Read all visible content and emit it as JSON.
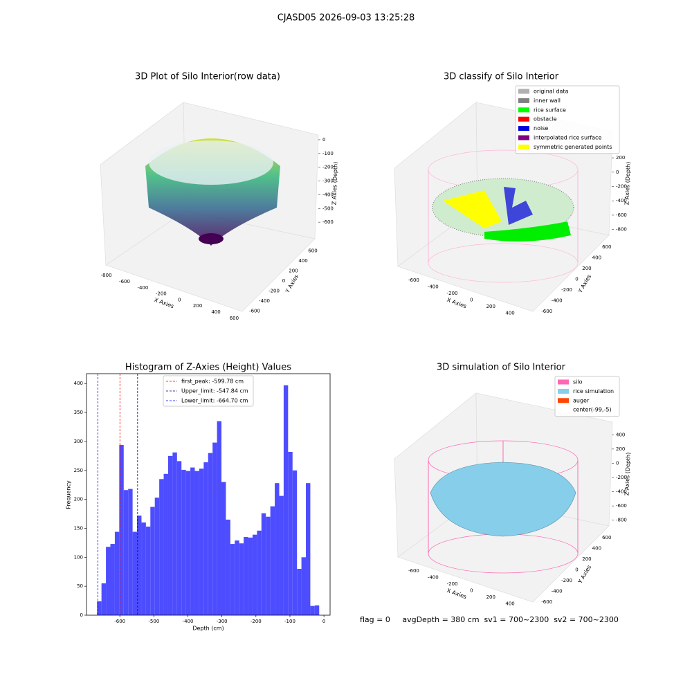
{
  "title": "CJASD05 2026-09-03 13:25:28",
  "footer": "flag = 0     avgDepth = 380 cm  sv1 = 700~2300  sv2 = 700~2300",
  "chart_data": [
    {
      "type": "scatter3d",
      "title": "3D Plot of Silo Interior(row data)",
      "xlabel": "X Axies",
      "ylabel": "Y Axies",
      "zlabel": "Z Axies (Depth)",
      "xlim": [
        -850,
        650
      ],
      "ylim": [
        -700,
        700
      ],
      "zlim": [
        -700,
        50
      ],
      "xticks": [
        -800,
        -600,
        -400,
        -200,
        0,
        200,
        400,
        600
      ],
      "yticks": [
        -600,
        -400,
        -200,
        0,
        200,
        400,
        600
      ],
      "zticks": [
        0,
        -100,
        -200,
        -300,
        -400,
        -500,
        -600
      ]
    },
    {
      "type": "scatter3d",
      "title": "3D classify of Silo Interior",
      "xlabel": "X Axies",
      "ylabel": "Y Axies",
      "zlabel": "Z Axies (Depth)",
      "xlim": [
        -700,
        500
      ],
      "ylim": [
        -700,
        700
      ],
      "zlim": [
        -900,
        500
      ],
      "xticks": [
        -600,
        -400,
        -200,
        0,
        200,
        400
      ],
      "yticks": [
        -600,
        -400,
        -200,
        0,
        200,
        400,
        600
      ],
      "zticks": [
        200,
        0,
        -200,
        -400,
        -600,
        -800
      ],
      "legend": [
        {
          "name": "original data",
          "color": "#b0b0b0"
        },
        {
          "name": "inner wall",
          "color": "#808080"
        },
        {
          "name": "rice surface",
          "color": "#00ff00"
        },
        {
          "name": "obstacle",
          "color": "#ff0000"
        },
        {
          "name": "noise",
          "color": "#0000dd"
        },
        {
          "name": "interpolated rice surface",
          "color": "#800080"
        },
        {
          "name": "symmetric generated points",
          "color": "#ffff00"
        }
      ]
    },
    {
      "type": "histogram",
      "title": "Histogram of Z-Axies (Height) Values",
      "xlabel": "Depth (cm)",
      "ylabel": "Frequency",
      "color": "#4d4dff",
      "xlim": [
        -698,
        18
      ],
      "ylim": [
        0,
        417
      ],
      "xticks": [
        -600,
        -500,
        -400,
        -300,
        -200,
        -100,
        0
      ],
      "yticks": [
        0,
        50,
        100,
        150,
        200,
        250,
        300,
        350,
        400
      ],
      "bins": [
        -667,
        -653.94,
        -640.88,
        -627.82,
        -614.76,
        -601.7,
        -588.64,
        -575.58,
        -562.52,
        -549.46,
        -536.4,
        -523.34,
        -510.28,
        -497.22,
        -484.16,
        -471.1,
        -458.04,
        -444.98,
        -431.92,
        -418.86,
        -405.8,
        -392.74,
        -379.68,
        -366.62,
        -353.56,
        -340.5,
        -327.44,
        -314.38,
        -301.32,
        -288.26,
        -275.2,
        -262.14,
        -249.08,
        -236.02,
        -222.96,
        -209.9,
        -196.84,
        -183.78,
        -170.72,
        -157.66,
        -144.6,
        -131.54,
        -118.48,
        -105.42,
        -92.36,
        -79.3,
        -66.24,
        -53.18,
        -40.12,
        -27.06,
        -14
      ],
      "values": [
        24,
        55,
        118,
        123,
        144,
        294,
        216,
        218,
        144,
        172,
        160,
        153,
        187,
        203,
        235,
        244,
        275,
        281,
        266,
        251,
        249,
        255,
        249,
        253,
        264,
        280,
        298,
        335,
        230,
        165,
        123,
        129,
        124,
        135,
        134,
        139,
        146,
        176,
        170,
        188,
        228,
        206,
        397,
        282,
        250,
        80,
        100,
        228,
        16,
        17
      ],
      "lines": [
        {
          "name": "first_peak: -599.78 cm",
          "value": -599.78,
          "color": "#ff0000"
        },
        {
          "name": "Upper_limit: -547.84 cm",
          "value": -547.84,
          "color": "#00008b"
        },
        {
          "name": "Lower_limit: -664.70 cm",
          "value": -664.7,
          "color": "#0000ff"
        }
      ]
    },
    {
      "type": "scatter3d",
      "title": "3D simulation of Silo Interior",
      "xlabel": "X Axies",
      "ylabel": "Y Axies",
      "zlabel": "Z Axies (Depth)",
      "xlim": [
        -700,
        500
      ],
      "ylim": [
        -700,
        700
      ],
      "zlim": [
        -900,
        500
      ],
      "xticks": [
        -600,
        -400,
        -200,
        0,
        200,
        400
      ],
      "yticks": [
        -600,
        -400,
        -200,
        0,
        200,
        400,
        600
      ],
      "zticks": [
        400,
        200,
        0,
        -200,
        -400,
        -600,
        -800
      ],
      "legend": [
        {
          "name": "silo",
          "color": "#ff69b4"
        },
        {
          "name": "rice simulation",
          "color": "#87ceeb"
        },
        {
          "name": "auger",
          "color": "#ff4500"
        },
        {
          "name": "center(-99,-5)",
          "color": "#ffffff"
        }
      ]
    }
  ]
}
